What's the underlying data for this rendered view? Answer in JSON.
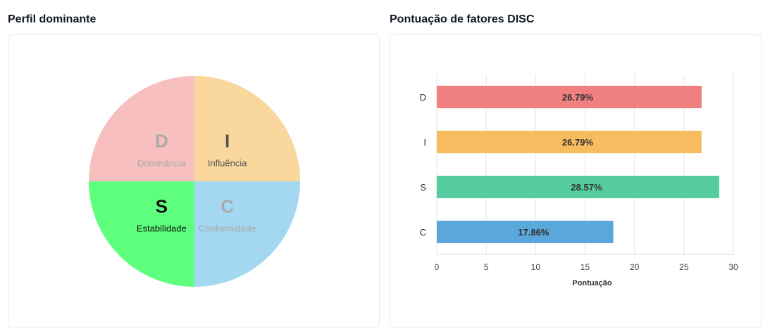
{
  "left_panel": {
    "title": "Perfil dominante",
    "quadrants": [
      {
        "key": "D",
        "letter": "D",
        "label": "Dominância",
        "color": "#f7c0bf",
        "text_color": "#a9a9a9",
        "highlighted": false
      },
      {
        "key": "I",
        "letter": "I",
        "label": "Influência",
        "color": "#fad79c",
        "text_color": "#555555",
        "highlighted": false
      },
      {
        "key": "S",
        "letter": "S",
        "label": "Estabilidade",
        "color": "#5eff7d",
        "text_color": "#111111",
        "highlighted": true
      },
      {
        "key": "C",
        "letter": "C",
        "label": "Conformidade",
        "color": "#a4d8f0",
        "text_color": "#a9a9a9",
        "highlighted": false
      }
    ]
  },
  "right_panel": {
    "title": "Pontuação de fatores DISC"
  },
  "chart_data": [
    {
      "type": "pie",
      "categories": [
        "D",
        "I",
        "S",
        "C"
      ],
      "labels": [
        "Dominância",
        "Influência",
        "Estabilidade",
        "Conformidade"
      ],
      "values": [
        25,
        25,
        25,
        25
      ],
      "colors": [
        "#f7c0bf",
        "#fad79c",
        "#5eff7d",
        "#a4d8f0"
      ]
    },
    {
      "type": "bar",
      "orientation": "horizontal",
      "categories": [
        "D",
        "I",
        "S",
        "C"
      ],
      "values": [
        26.79,
        26.79,
        28.57,
        17.86
      ],
      "data_labels": [
        "26.79%",
        "26.79%",
        "28.57%",
        "17.86%"
      ],
      "colors": [
        "#f08080",
        "#f7bc60",
        "#55cda0",
        "#5aa7db"
      ],
      "xlabel": "Pontuação",
      "xlim": [
        0,
        30
      ],
      "xticks": [
        0,
        5,
        10,
        15,
        20,
        25,
        30
      ],
      "grid": true
    }
  ]
}
